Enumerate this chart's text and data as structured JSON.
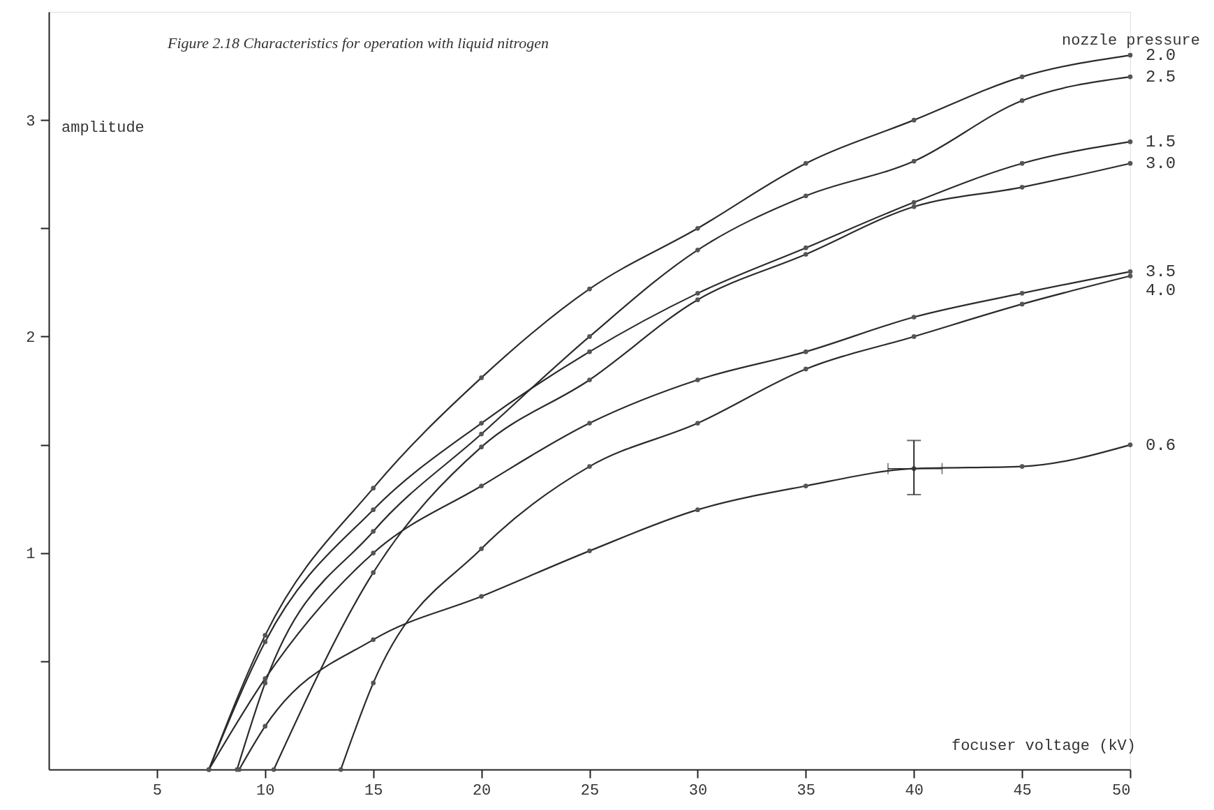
{
  "chart_data": {
    "type": "line",
    "title": "Figure 2.18  Characteristics for operation with liquid nitrogen",
    "xlabel": "focuser voltage (kV)",
    "ylabel": "amplitude",
    "legend_title": "nozzle pressure",
    "xlim": [
      0,
      50
    ],
    "xticks": [
      5,
      10,
      15,
      20,
      25,
      30,
      35,
      40,
      45,
      50
    ],
    "ylim": [
      0,
      3.5
    ],
    "yticks": [
      {
        "value": 0.5,
        "label": null
      },
      1,
      {
        "value": 1.5,
        "label": null
      },
      2,
      {
        "value": 2.5,
        "label": null
      },
      3
    ],
    "grid": false,
    "marker": "circle",
    "line_style": "solid",
    "series": [
      {
        "name": "2.0",
        "color": "#2b2b2b",
        "x": [
          7.4,
          10,
          15,
          20,
          25,
          30,
          35,
          40,
          45,
          50
        ],
        "values": [
          0,
          0.62,
          1.3,
          1.81,
          2.22,
          2.5,
          2.8,
          3.0,
          3.2,
          3.3
        ]
      },
      {
        "name": "2.5",
        "color": "#2b2b2b",
        "x": [
          8.7,
          10,
          15,
          20,
          25,
          30,
          35,
          40,
          45,
          50
        ],
        "values": [
          0,
          0.4,
          1.1,
          1.55,
          2.0,
          2.4,
          2.65,
          2.81,
          3.09,
          3.2
        ]
      },
      {
        "name": "1.5",
        "color": "#2b2b2b",
        "x": [
          7.4,
          10,
          15,
          20,
          25,
          30,
          35,
          40,
          45,
          50
        ],
        "values": [
          0,
          0.59,
          1.2,
          1.6,
          1.93,
          2.2,
          2.41,
          2.62,
          2.8,
          2.9
        ]
      },
      {
        "name": "3.0",
        "color": "#2b2b2b",
        "x": [
          10.4,
          15,
          20,
          25,
          30,
          35,
          40,
          45,
          50
        ],
        "values": [
          0,
          0.91,
          1.49,
          1.8,
          2.17,
          2.38,
          2.6,
          2.69,
          2.8
        ]
      },
      {
        "name": "3.5",
        "color": "#2b2b2b",
        "x": [
          7.4,
          10,
          15,
          20,
          25,
          30,
          35,
          40,
          45,
          50
        ],
        "values": [
          0,
          0.42,
          1.0,
          1.31,
          1.6,
          1.8,
          1.93,
          2.09,
          2.2,
          2.3
        ]
      },
      {
        "name": "4.0",
        "color": "#2b2b2b",
        "x": [
          13.5,
          15,
          20,
          25,
          30,
          35,
          40,
          45,
          50
        ],
        "values": [
          0,
          0.4,
          1.02,
          1.4,
          1.6,
          1.85,
          2.0,
          2.15,
          2.28
        ]
      },
      {
        "name": "0.6",
        "color": "#2b2b2b",
        "x": [
          8.8,
          10,
          15,
          20,
          25,
          30,
          35,
          40,
          45,
          50
        ],
        "values": [
          0,
          0.2,
          0.6,
          0.8,
          1.01,
          1.2,
          1.31,
          1.39,
          1.4,
          1.5
        ],
        "errors": [
          null,
          null,
          null,
          null,
          null,
          null,
          null,
          [
            1.27,
            1.52
          ],
          null,
          null
        ],
        "xerrors": [
          null,
          null,
          null,
          null,
          null,
          null,
          null,
          [
            38.8,
            41.3
          ],
          null,
          null
        ]
      }
    ]
  }
}
